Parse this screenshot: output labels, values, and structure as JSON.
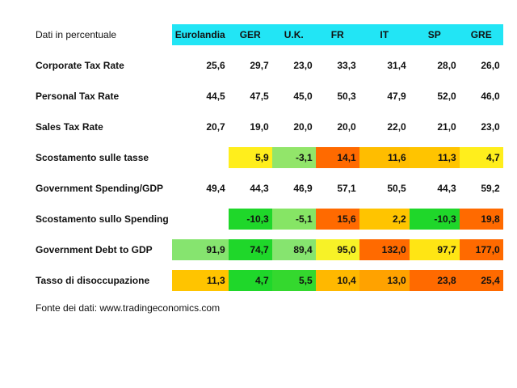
{
  "header": {
    "label": "Dati in percentuale",
    "columns": [
      "Eurolandia",
      "GER",
      "U.K.",
      "FR",
      "IT",
      "SP",
      "GRE"
    ]
  },
  "rows": [
    {
      "label": "Corporate Tax Rate",
      "values": [
        "25,6",
        "29,7",
        "23,0",
        "33,3",
        "31,4",
        "28,0",
        "26,0"
      ],
      "colors": [
        "",
        "",
        "",
        "",
        "",
        "",
        ""
      ]
    },
    {
      "label": "Personal Tax Rate",
      "values": [
        "44,5",
        "47,5",
        "45,0",
        "50,3",
        "47,9",
        "52,0",
        "46,0"
      ],
      "colors": [
        "",
        "",
        "",
        "",
        "",
        "",
        ""
      ]
    },
    {
      "label": "Sales Tax Rate",
      "values": [
        "20,7",
        "19,0",
        "20,0",
        "20,0",
        "22,0",
        "21,0",
        "23,0"
      ],
      "colors": [
        "",
        "",
        "",
        "",
        "",
        "",
        ""
      ]
    },
    {
      "label": "Scostamento sulle tasse",
      "values": [
        "",
        "5,9",
        "-3,1",
        "14,1",
        "11,6",
        "11,3",
        "4,7"
      ],
      "colors": [
        "",
        "#ffee1c",
        "#92e56a",
        "#ff6a00",
        "#ffbd00",
        "#ffc400",
        "#ffee1c"
      ]
    },
    {
      "label": "Government Spending/GDP",
      "values": [
        "49,4",
        "44,3",
        "46,9",
        "57,1",
        "50,5",
        "44,3",
        "59,2"
      ],
      "colors": [
        "",
        "",
        "",
        "",
        "",
        "",
        ""
      ]
    },
    {
      "label": "Scostamento sullo Spending",
      "values": [
        "",
        "-10,3",
        "-5,1",
        "15,6",
        "2,2",
        "-10,3",
        "19,8"
      ],
      "colors": [
        "",
        "#1fd72a",
        "#86e565",
        "#ff6a00",
        "#ffc400",
        "#1fd72a",
        "#ff6a00"
      ]
    },
    {
      "label": "Government Debt to GDP",
      "values": [
        "91,9",
        "74,7",
        "89,4",
        "95,0",
        "132,0",
        "97,7",
        "177,0"
      ],
      "colors": [
        "#86e46f",
        "#1fd72a",
        "#86e46f",
        "#f7f227",
        "#ff6a00",
        "#ffe514",
        "#ff6a00"
      ]
    },
    {
      "label": "Tasso di disoccupazione",
      "values": [
        "11,3",
        "4,7",
        "5,5",
        "10,4",
        "13,0",
        "23,8",
        "25,4"
      ],
      "colors": [
        "#ffc400",
        "#1fd72a",
        "#34d82e",
        "#ffb800",
        "#ffa200",
        "#ff6a00",
        "#ff6a00"
      ]
    }
  ],
  "source": "Fonte dei dati: www.tradingeconomics.com"
}
